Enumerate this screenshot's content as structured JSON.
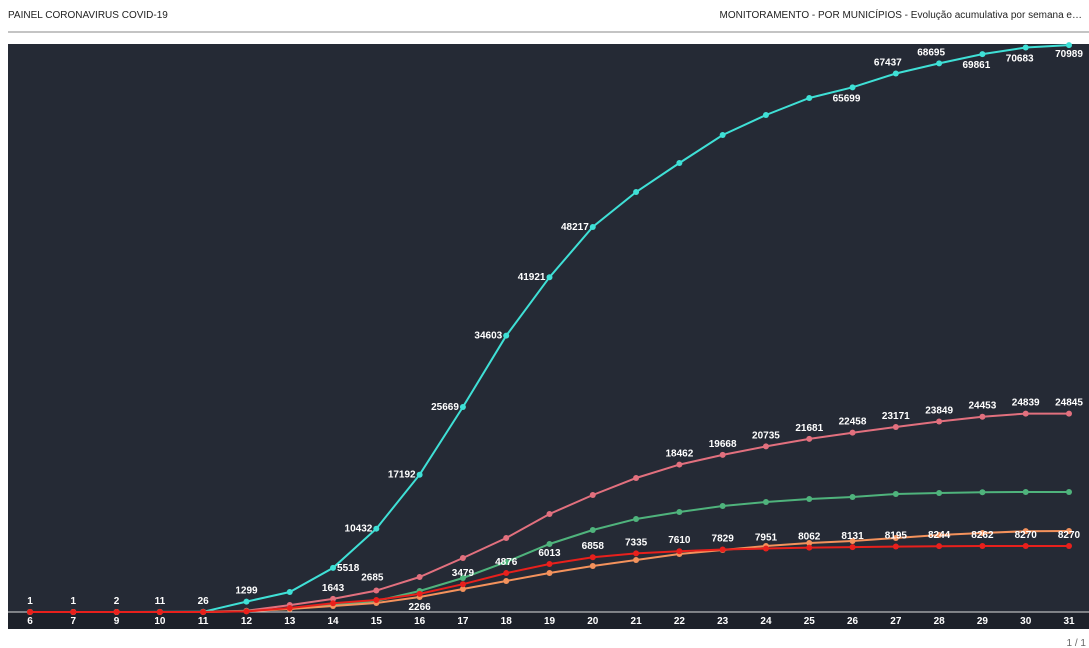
{
  "header": {
    "left": "PAINEL CORONAVIRUS COVID-19",
    "right": "MONITORAMENTO  -  POR MUNICÍPIOS  -  Evolução acumulativa por semana e…"
  },
  "pager": "1 / 1",
  "chart_data": {
    "type": "line",
    "categories": [
      "6",
      "7",
      "9",
      "10",
      "11",
      "12",
      "13",
      "14",
      "15",
      "16",
      "17",
      "18",
      "19",
      "20",
      "21",
      "22",
      "23",
      "24",
      "25",
      "26",
      "27",
      "28",
      "29",
      "30",
      "31"
    ],
    "ylim": [
      0,
      71000
    ],
    "series": [
      {
        "color": "#3fe0d6",
        "values": [
          1,
          1,
          2,
          11,
          26,
          1299,
          2504,
          5518,
          10432,
          17192,
          25669,
          34603,
          41921,
          48217,
          52593,
          56224,
          59730,
          62234,
          64363,
          65699,
          67437,
          68695,
          69861,
          70683,
          70989
        ],
        "value_labels": [
          "1",
          "1",
          "2",
          "11",
          "26",
          "1299",
          null,
          "5518",
          "10432",
          "17192",
          "25669",
          "34603",
          "41921",
          "48217",
          null,
          null,
          null,
          null,
          null,
          "65699",
          "67437",
          "68695",
          "69861",
          "70683",
          "70989"
        ]
      },
      {
        "color": "#e2707e",
        "values": [
          0,
          0,
          0,
          0,
          10,
          150,
          870,
          1643,
          2685,
          4380,
          6760,
          9270,
          12270,
          14650,
          16780,
          18462,
          19668,
          20735,
          21681,
          22458,
          23171,
          23849,
          24453,
          24839,
          24845
        ],
        "value_labels": [
          null,
          null,
          null,
          null,
          null,
          null,
          null,
          "1643",
          "2685",
          null,
          null,
          null,
          null,
          null,
          null,
          "18462",
          "19668",
          "20735",
          "21681",
          "22458",
          "23171",
          "23849",
          "24453",
          "24839",
          "24845"
        ]
      },
      {
        "color": "#4fb37c",
        "values": [
          0,
          0,
          0,
          0,
          0,
          120,
          380,
          880,
          1380,
          2630,
          4260,
          6260,
          8510,
          10270,
          11650,
          12520,
          13270,
          13770,
          14150,
          14400,
          14780,
          14900,
          15000,
          15030,
          15030
        ]
      },
      {
        "color": "#f4925c",
        "values": [
          0,
          0,
          0,
          0,
          0,
          100,
          380,
          750,
          1130,
          1880,
          2880,
          3880,
          4880,
          5760,
          6510,
          7260,
          7760,
          8260,
          8640,
          8890,
          9270,
          9640,
          9890,
          10120,
          10140
        ]
      },
      {
        "color": "#e8201c",
        "values": [
          0,
          0,
          0,
          0,
          0,
          80,
          500,
          1100,
          1500,
          2266,
          3479,
          4876,
          6013,
          6858,
          7335,
          7610,
          7829,
          7951,
          8062,
          8131,
          8195,
          8244,
          8262,
          8270,
          8270
        ],
        "value_labels": [
          null,
          null,
          null,
          null,
          null,
          null,
          null,
          null,
          null,
          "2266",
          "3479",
          "4876",
          "6013",
          "6858",
          "7335",
          "7610",
          "7829",
          "7951",
          "8062",
          "8131",
          "8195",
          "8244",
          "8262",
          "8270",
          "8270"
        ]
      }
    ]
  }
}
